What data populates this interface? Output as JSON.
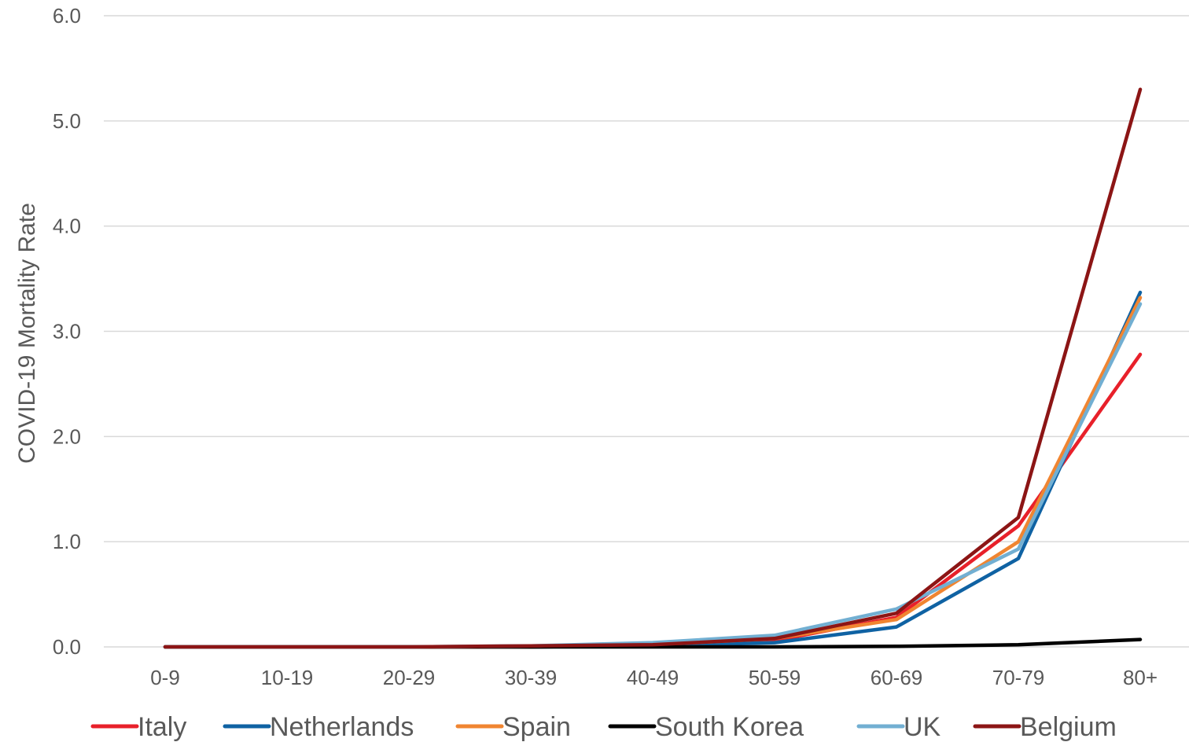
{
  "chart_data": {
    "type": "line",
    "title": "",
    "xlabel": "",
    "ylabel": "COVID-19 Mortality Rate",
    "categories": [
      "0-9",
      "10-19",
      "20-29",
      "30-39",
      "40-49",
      "50-59",
      "60-69",
      "70-79",
      "80+"
    ],
    "ylim": [
      0,
      6
    ],
    "yticks": [
      "0.0",
      "1.0",
      "2.0",
      "3.0",
      "4.0",
      "5.0",
      "6.0"
    ],
    "grid": true,
    "legend_position": "bottom",
    "series": [
      {
        "name": "Italy",
        "color": "#e8202a",
        "values": [
          0.0,
          0.0,
          0.0,
          0.0,
          0.01,
          0.06,
          0.28,
          1.15,
          2.78
        ]
      },
      {
        "name": "Netherlands",
        "color": "#0f62a3",
        "values": [
          0.0,
          0.0,
          0.0,
          0.0,
          0.01,
          0.04,
          0.19,
          0.84,
          3.37
        ]
      },
      {
        "name": "Spain",
        "color": "#f08531",
        "values": [
          0.0,
          0.0,
          0.0,
          0.0,
          0.02,
          0.08,
          0.26,
          1.0,
          3.32
        ]
      },
      {
        "name": "South Korea",
        "color": "#000000",
        "values": [
          0.0,
          0.0,
          0.0,
          0.0,
          0.0,
          0.0,
          0.005,
          0.02,
          0.07
        ]
      },
      {
        "name": "UK",
        "color": "#72afd2",
        "values": [
          0.0,
          0.0,
          0.0,
          0.01,
          0.04,
          0.11,
          0.36,
          0.93,
          3.26
        ]
      },
      {
        "name": "Belgium",
        "color": "#8c1515",
        "values": [
          0.0,
          0.0,
          0.0,
          0.01,
          0.02,
          0.08,
          0.32,
          1.23,
          5.3
        ]
      }
    ]
  }
}
